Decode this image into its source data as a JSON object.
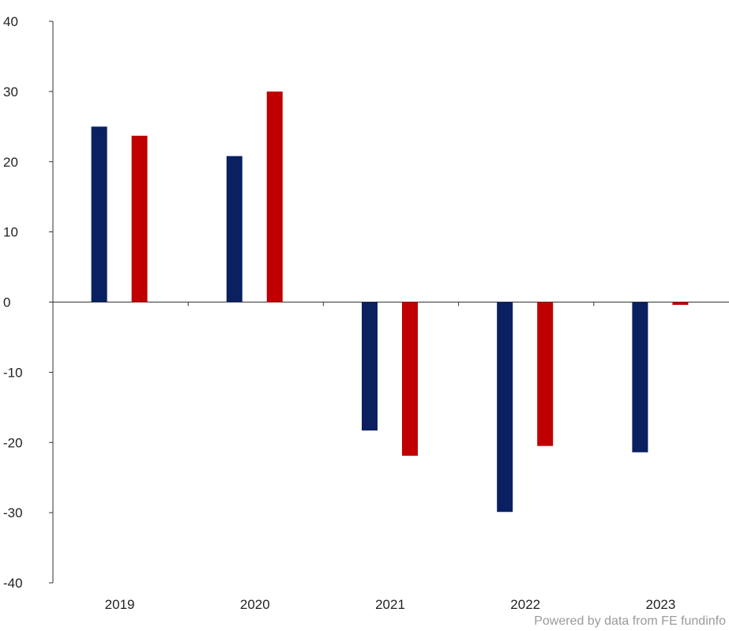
{
  "chart_data": {
    "type": "bar",
    "title": "",
    "xlabel": "",
    "ylabel": "",
    "categories": [
      "2019",
      "2020",
      "2021",
      "2022",
      "2023"
    ],
    "series": [
      {
        "values": [
          25.0,
          20.8,
          -18.3,
          -29.9,
          -21.4
        ],
        "color": "#0a2060"
      },
      {
        "values": [
          23.7,
          30.0,
          -21.9,
          -20.5,
          -0.4
        ],
        "color": "#c00000"
      }
    ],
    "ylim": [
      -40,
      40
    ],
    "yticks": [
      "-40",
      "-30",
      "-20",
      "-10",
      "0",
      "10",
      "20",
      "30",
      "40"
    ],
    "grid": false,
    "legend": "none"
  },
  "footer": {
    "credit": "Powered by data from FE fundinfo"
  }
}
